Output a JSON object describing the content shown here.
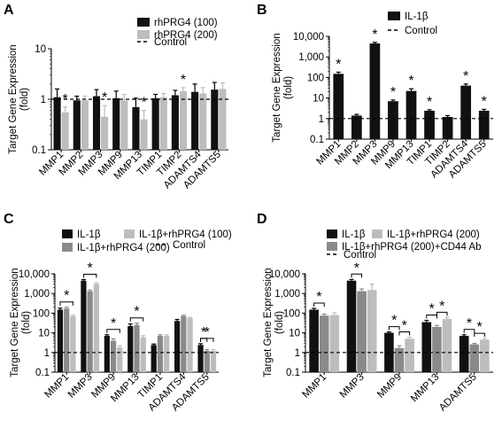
{
  "colors": {
    "black": "#111111",
    "gray": "#8a8a8a",
    "light_gray": "#bdbdbd",
    "control_line": "#000000"
  },
  "chart_data": [
    {
      "panel": "A",
      "type": "bar",
      "scale": "log",
      "ylabel": "Target Gene Expression (fold)",
      "ylim": [
        0.1,
        10
      ],
      "yticks": [
        "0.1",
        "1",
        "10"
      ],
      "categories": [
        "MMP1",
        "MMP2",
        "MMP3",
        "MMP9",
        "MMP13",
        "TIMP1",
        "TIMP2",
        "ADAMTS4",
        "ADAMTS5"
      ],
      "series": [
        {
          "name": "rhPRG4 (100)",
          "color": "#111111",
          "values": [
            1.1,
            0.95,
            1.15,
            1.05,
            0.7,
            1.05,
            1.2,
            1.4,
            1.55
          ],
          "errors": [
            0.5,
            0.2,
            0.4,
            0.4,
            0.35,
            0.2,
            0.3,
            0.6,
            0.6
          ]
        },
        {
          "name": "rhPRG4 (200)",
          "color": "#bdbdbd",
          "values": [
            0.55,
            0.95,
            0.45,
            0.95,
            0.4,
            1.1,
            1.45,
            1.3,
            1.6
          ],
          "errors": [
            0.15,
            0.2,
            0.3,
            0.3,
            0.2,
            0.2,
            0.25,
            0.4,
            0.5
          ]
        }
      ],
      "reference": {
        "name": "Control",
        "value": 1
      },
      "significance": [
        {
          "category": 0,
          "series": 1
        },
        {
          "category": 2,
          "series": 1
        },
        {
          "category": 4,
          "series": 1
        },
        {
          "category": 6,
          "series": 1
        }
      ],
      "legend_position": "top-right"
    },
    {
      "panel": "B",
      "type": "bar",
      "scale": "log",
      "ylabel": "Target Gene Expression (fold)",
      "ylim": [
        0.1,
        10000
      ],
      "yticks": [
        "0.1",
        "1",
        "10",
        "100",
        "1,000",
        "10,000"
      ],
      "categories": [
        "MMP1",
        "MMP2",
        "MMP3",
        "MMP9",
        "MMP13",
        "TIMP1",
        "TIMP2",
        "ADAMTS4",
        "ADAMTS5"
      ],
      "series": [
        {
          "name": "IL-1β",
          "color": "#111111",
          "values": [
            150,
            1.4,
            4500,
            7,
            22,
            2.4,
            1.2,
            40,
            2.4
          ],
          "errors": [
            30,
            0.2,
            600,
            1,
            6,
            0.3,
            0.2,
            8,
            0.4
          ]
        }
      ],
      "reference": {
        "name": "Control",
        "value": 1
      },
      "significance": [
        {
          "category": 0,
          "series": 0
        },
        {
          "category": 2,
          "series": 0
        },
        {
          "category": 3,
          "series": 0
        },
        {
          "category": 4,
          "series": 0
        },
        {
          "category": 5,
          "series": 0
        },
        {
          "category": 7,
          "series": 0
        },
        {
          "category": 8,
          "series": 0
        }
      ],
      "legend_position": "top-right"
    },
    {
      "panel": "C",
      "type": "bar",
      "scale": "log",
      "ylabel": "Target Gene Expression (fold)",
      "ylim": [
        0.1,
        10000
      ],
      "yticks": [
        "0.1",
        "1",
        "10",
        "100",
        "1,000",
        "10,000"
      ],
      "categories": [
        "MMP1",
        "MMP3",
        "MMP9",
        "MMP13",
        "TIMP1",
        "ADAMTS4",
        "ADAMTS5"
      ],
      "series": [
        {
          "name": "IL-1β",
          "color": "#111111",
          "values": [
            150,
            4500,
            7,
            22,
            2.4,
            40,
            2.4
          ],
          "errors": [
            30,
            600,
            1,
            6,
            0.3,
            8,
            0.4
          ]
        },
        {
          "name": "IL-1β+rhPRG4 (200)",
          "color": "#8a8a8a",
          "values": [
            170,
            1300,
            4,
            25,
            7,
            70,
            1.2
          ],
          "errors": [
            30,
            200,
            1,
            6,
            1,
            8,
            0.2
          ]
        },
        {
          "name": "IL-1β+rhPRG4 (100)",
          "color": "#bdbdbd",
          "values": [
            70,
            3000,
            1.8,
            6,
            7,
            55,
            1.2
          ],
          "errors": [
            10,
            500,
            0.4,
            1.2,
            1,
            6,
            0.2
          ]
        }
      ],
      "reference": {
        "name": "Control",
        "value": 1
      },
      "brackets": [
        {
          "category": 0,
          "from": 0,
          "to": 2
        },
        {
          "category": 1,
          "from": 0,
          "to": 2
        },
        {
          "category": 2,
          "from": 0,
          "to": 2
        },
        {
          "category": 3,
          "from": 0,
          "to": 2
        },
        {
          "category": 6,
          "from": 0,
          "to": 2
        },
        {
          "category": 6,
          "from": 0,
          "to": 1
        }
      ],
      "star": "*",
      "legend_position": "top"
    },
    {
      "panel": "D",
      "type": "bar",
      "scale": "log",
      "ylabel": "Target Gene Expression (fold)",
      "ylim": [
        0.1,
        10000
      ],
      "yticks": [
        "0.1",
        "1",
        "10",
        "100",
        "1,000",
        "10,000"
      ],
      "categories": [
        "MMP1",
        "MMP3",
        "MMP9",
        "MMP13",
        "ADAMTS5"
      ],
      "series": [
        {
          "name": "IL-1β",
          "color": "#111111",
          "values": [
            150,
            4500,
            10,
            35,
            7
          ],
          "errors": [
            25,
            700,
            1,
            8,
            1
          ]
        },
        {
          "name": "IL-1β+rhPRG4 (200)+CD44 Ab",
          "color": "#8a8a8a",
          "values": [
            75,
            1300,
            1.7,
            20,
            2.6
          ],
          "errors": [
            15,
            400,
            0.5,
            4,
            0.3
          ]
        },
        {
          "name": "IL-1β+rhPRG4 (200)",
          "color": "#bdbdbd",
          "values": [
            80,
            1500,
            5,
            50,
            4.5
          ],
          "errors": [
            25,
            1500,
            1,
            10,
            0.6
          ]
        }
      ],
      "reference": {
        "name": "Control",
        "value": 1
      },
      "brackets": [
        {
          "category": 0,
          "from": 0,
          "to": 1
        },
        {
          "category": 1,
          "from": 0,
          "to": 1
        },
        {
          "category": 2,
          "from": 0,
          "to": 1
        },
        {
          "category": 2,
          "from": 1,
          "to": 2
        },
        {
          "category": 3,
          "from": 0,
          "to": 1
        },
        {
          "category": 3,
          "from": 1,
          "to": 2
        },
        {
          "category": 4,
          "from": 0,
          "to": 1
        },
        {
          "category": 4,
          "from": 1,
          "to": 2
        }
      ],
      "star": "*",
      "legend_position": "top"
    }
  ]
}
